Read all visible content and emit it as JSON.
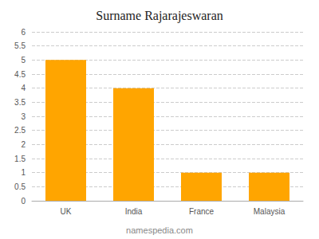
{
  "chart_data": {
    "type": "bar",
    "title": "Surname Rajarajeswaran",
    "categories": [
      "UK",
      "India",
      "France",
      "Malaysia"
    ],
    "values": [
      5,
      4,
      1,
      1
    ],
    "color": "#FFA500",
    "ylim": [
      0,
      6
    ],
    "yticks": [
      0,
      0.5,
      1,
      1.5,
      2,
      2.5,
      3,
      3.5,
      4,
      4.5,
      5,
      5.5,
      6
    ],
    "grid": true,
    "annotations": [
      "namespedia.com"
    ]
  }
}
